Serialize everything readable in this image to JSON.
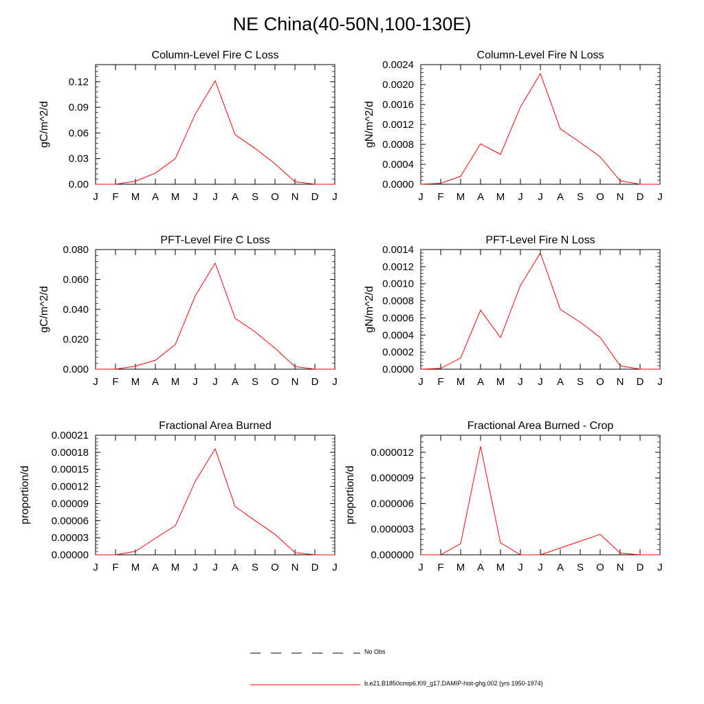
{
  "page_title": "NE China(40-50N,100-130E)",
  "line_color": "#ff0000",
  "obs_color": "#000000",
  "legend": {
    "obs_label": "No Obs",
    "model_label": "b.e21.B1850cmip6.f09_g17.DAMIP-hist-ghg.002 (yrs 1950-1974)"
  },
  "chart_data": [
    {
      "type": "line",
      "title": "Column-Level Fire C Loss",
      "ylabel": "gC/m^2/d",
      "categories": [
        "J",
        "F",
        "M",
        "A",
        "M",
        "J",
        "J",
        "A",
        "S",
        "O",
        "N",
        "D",
        "J"
      ],
      "ylim": [
        0,
        0.14
      ],
      "yticks": [
        "0.00",
        "0.03",
        "0.06",
        "0.09",
        "0.12"
      ],
      "series": [
        {
          "values": [
            0.0,
            0.0,
            0.0035,
            0.013,
            0.03,
            0.082,
            0.121,
            0.058,
            0.042,
            0.024,
            0.003,
            0.0,
            0.0
          ]
        }
      ]
    },
    {
      "type": "line",
      "title": "Column-Level Fire N Loss",
      "ylabel": "gN/m^2/d",
      "categories": [
        "J",
        "F",
        "M",
        "A",
        "M",
        "J",
        "J",
        "A",
        "S",
        "O",
        "N",
        "D",
        "J"
      ],
      "ylim": [
        0,
        0.0024
      ],
      "yticks": [
        "0.0000",
        "0.0004",
        "0.0008",
        "0.0012",
        "0.0016",
        "0.0020",
        "0.0024"
      ],
      "series": [
        {
          "values": [
            0.0,
            2e-05,
            0.00016,
            0.00081,
            0.0006,
            0.00155,
            0.00222,
            0.00111,
            0.00084,
            0.00055,
            7e-05,
            0.0,
            0.0
          ]
        }
      ]
    },
    {
      "type": "line",
      "title": "PFT-Level Fire C Loss",
      "ylabel": "gC/m^2/d",
      "categories": [
        "J",
        "F",
        "M",
        "A",
        "M",
        "J",
        "J",
        "A",
        "S",
        "O",
        "N",
        "D",
        "J"
      ],
      "ylim": [
        0,
        0.08
      ],
      "yticks": [
        "0.000",
        "0.020",
        "0.040",
        "0.060",
        "0.080"
      ],
      "series": [
        {
          "values": [
            0.0,
            0.0,
            0.002,
            0.006,
            0.0165,
            0.049,
            0.071,
            0.034,
            0.025,
            0.014,
            0.0018,
            0.0,
            0.0
          ]
        }
      ]
    },
    {
      "type": "line",
      "title": "PFT-Level Fire N Loss",
      "ylabel": "gN/m^2/d",
      "categories": [
        "J",
        "F",
        "M",
        "A",
        "M",
        "J",
        "J",
        "A",
        "S",
        "O",
        "N",
        "D",
        "J"
      ],
      "ylim": [
        0,
        0.0014
      ],
      "yticks": [
        "0.0000",
        "0.0002",
        "0.0004",
        "0.0006",
        "0.0008",
        "0.0010",
        "0.0012",
        "0.0014"
      ],
      "series": [
        {
          "values": [
            0.0,
            1e-05,
            0.00013,
            0.00069,
            0.00037,
            0.00098,
            0.00136,
            0.0007,
            0.00055,
            0.00037,
            4e-05,
            0.0,
            0.0
          ]
        }
      ]
    },
    {
      "type": "line",
      "title": "Fractional Area Burned",
      "ylabel": "proportion/d",
      "categories": [
        "J",
        "F",
        "M",
        "A",
        "M",
        "J",
        "J",
        "A",
        "S",
        "O",
        "N",
        "D",
        "J"
      ],
      "ylim": [
        0,
        0.00021
      ],
      "yticks": [
        "0.00000",
        "0.00003",
        "0.00006",
        "0.00009",
        "0.00012",
        "0.00015",
        "0.00018",
        "0.00021"
      ],
      "series": [
        {
          "values": [
            0.0,
            0.0,
            6e-06,
            2.9e-05,
            5.1e-05,
            0.000129,
            0.000186,
            8.5e-05,
            6e-05,
            3.6e-05,
            4e-06,
            0.0,
            0.0
          ]
        }
      ]
    },
    {
      "type": "line",
      "title": "Fractional Area Burned - Crop",
      "ylabel": "proportion/d",
      "categories": [
        "J",
        "F",
        "M",
        "A",
        "M",
        "J",
        "J",
        "A",
        "S",
        "O",
        "N",
        "D",
        "J"
      ],
      "ylim": [
        0,
        1.4e-05
      ],
      "yticks": [
        "0.000000",
        "0.000003",
        "0.000006",
        "0.000009",
        "0.000012"
      ],
      "series": [
        {
          "values": [
            0.0,
            0.0,
            1.3e-06,
            1.27e-05,
            1.4e-06,
            0.0,
            0.0,
            8e-07,
            1.6e-06,
            2.4e-06,
            2e-07,
            0.0,
            0.0
          ]
        }
      ]
    }
  ]
}
